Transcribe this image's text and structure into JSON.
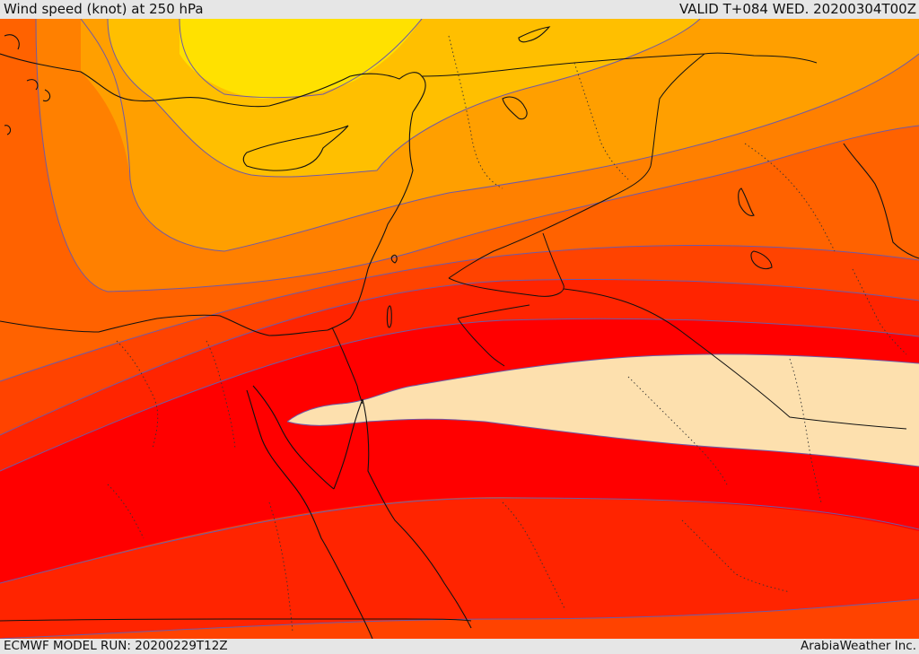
{
  "header": {
    "title": "Wind speed (knot) at 250 hPa",
    "valid": "VALID T+084 WED. 20200304T00Z"
  },
  "footer": {
    "model_run": "ECMWF MODEL RUN: 20200229T12Z",
    "brand": "ArabiaWeather Inc."
  },
  "map": {
    "field": "Wind speed",
    "level": "250 hPa",
    "units": "knot",
    "colors": {
      "band_1_weakest": "#ffe100",
      "band_2": "#ffbf00",
      "band_3": "#ff9f00",
      "band_4": "#ff8000",
      "band_5": "#ff6200",
      "band_6": "#ff4300",
      "band_7": "#ff2400",
      "band_8": "#ff0000",
      "jet_core": "#fde0ae",
      "contour_line": "#6f5aa6",
      "coastline": "#111111",
      "border_dotted": "#333333"
    }
  }
}
